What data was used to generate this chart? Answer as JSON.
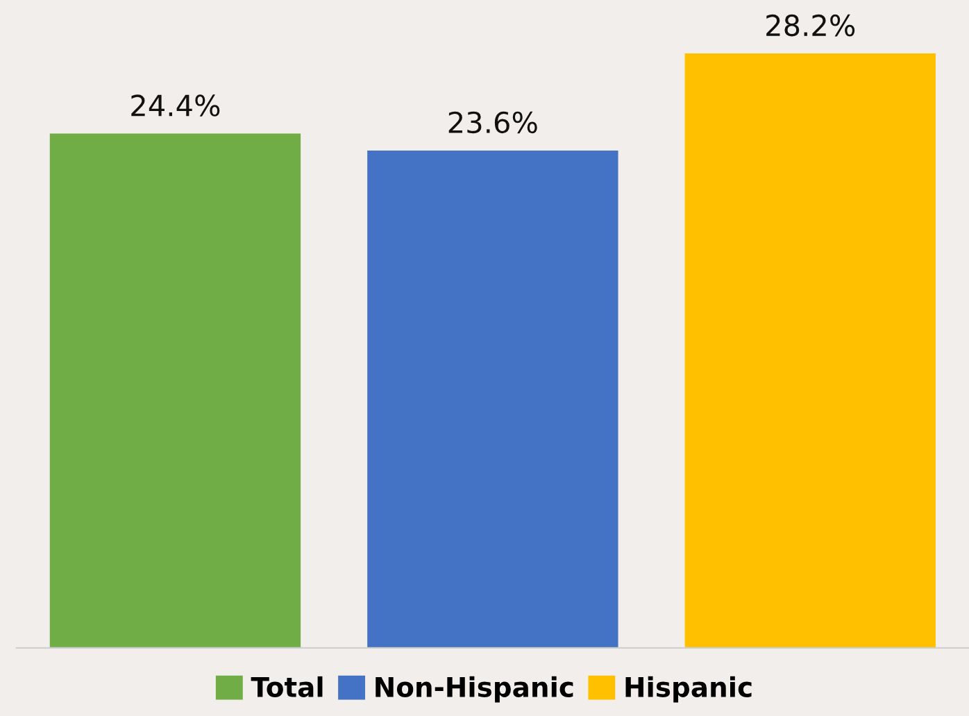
{
  "chart_data": {
    "type": "bar",
    "categories": [
      null
    ],
    "series": [
      {
        "name": "Total",
        "color": "#70ad47",
        "values": [
          24.4
        ],
        "value_labels": [
          "24.4%"
        ]
      },
      {
        "name": "Non-Hispanic",
        "color": "#4472c4",
        "values": [
          23.6
        ],
        "value_labels": [
          "23.6%"
        ]
      },
      {
        "name": "Hispanic",
        "color": "#ffc000",
        "values": [
          28.2
        ],
        "value_labels": [
          "28.2%"
        ]
      }
    ],
    "legend": "bottom",
    "grid": false
  }
}
